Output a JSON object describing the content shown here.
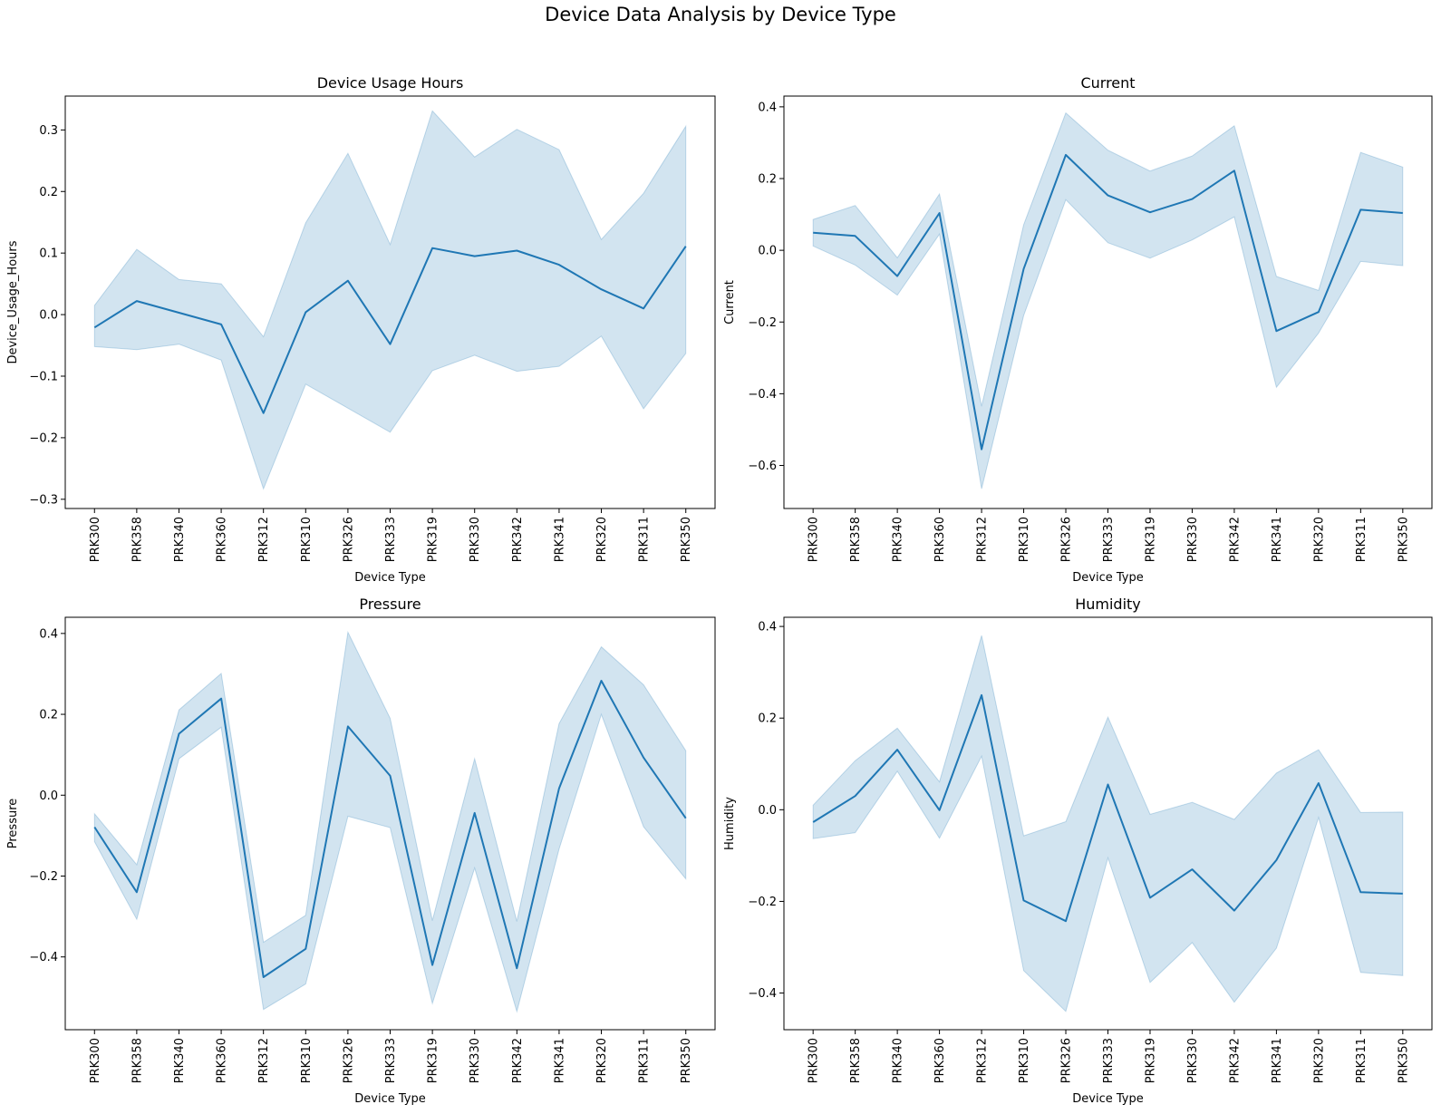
{
  "figure": {
    "suptitle": "Device Data Analysis by Device Type"
  },
  "chart_data": [
    {
      "type": "line",
      "title": "Device Usage Hours",
      "xlabel": "Device Type",
      "ylabel": "Device_Usage_Hours",
      "categories": [
        "PRK300",
        "PRK358",
        "PRK340",
        "PRK360",
        "PRK312",
        "PRK310",
        "PRK326",
        "PRK333",
        "PRK319",
        "PRK330",
        "PRK342",
        "PRK341",
        "PRK320",
        "PRK311",
        "PRK350"
      ],
      "ylim": [
        -0.315,
        0.355
      ],
      "yticks": [
        -0.3,
        -0.2,
        -0.1,
        0.0,
        0.1,
        0.2,
        0.3
      ],
      "ytick_labels": [
        "−0.3",
        "−0.2",
        "−0.1",
        "0.0",
        "0.1",
        "0.2",
        "0.3"
      ],
      "series": [
        {
          "values": [
            -0.021,
            0.022,
            0.003,
            -0.016,
            -0.16,
            0.004,
            0.055,
            -0.048,
            0.108,
            0.095,
            0.104,
            0.081,
            0.041,
            0.01,
            0.111
          ],
          "ci_lower": [
            -0.052,
            -0.057,
            -0.048,
            -0.074,
            -0.283,
            -0.113,
            -0.152,
            -0.191,
            -0.091,
            -0.066,
            -0.092,
            -0.084,
            -0.035,
            -0.153,
            -0.063
          ],
          "ci_upper": [
            0.015,
            0.106,
            0.057,
            0.05,
            -0.036,
            0.149,
            0.262,
            0.114,
            0.331,
            0.256,
            0.301,
            0.268,
            0.122,
            0.197,
            0.306
          ]
        }
      ],
      "color": "#1f77b4",
      "band_color": "#1f77b4"
    },
    {
      "type": "line",
      "title": "Current",
      "xlabel": "Device Type",
      "ylabel": "Current",
      "categories": [
        "PRK300",
        "PRK358",
        "PRK340",
        "PRK360",
        "PRK312",
        "PRK310",
        "PRK326",
        "PRK333",
        "PRK319",
        "PRK330",
        "PRK342",
        "PRK341",
        "PRK320",
        "PRK311",
        "PRK350"
      ],
      "ylim": [
        -0.72,
        0.43
      ],
      "yticks": [
        -0.6,
        -0.4,
        -0.2,
        0.0,
        0.2,
        0.4
      ],
      "ytick_labels": [
        "−0.6",
        "−0.4",
        "−0.2",
        "0.0",
        "0.2",
        "0.4"
      ],
      "series": [
        {
          "values": [
            0.049,
            0.04,
            -0.072,
            0.104,
            -0.555,
            -0.052,
            0.266,
            0.153,
            0.106,
            0.143,
            0.222,
            -0.225,
            -0.172,
            0.113,
            0.104
          ],
          "ci_lower": [
            0.012,
            -0.041,
            -0.125,
            0.045,
            -0.665,
            -0.182,
            0.141,
            0.021,
            -0.022,
            0.029,
            0.093,
            -0.382,
            -0.231,
            -0.031,
            -0.043
          ],
          "ci_upper": [
            0.086,
            0.125,
            -0.021,
            0.157,
            -0.435,
            0.071,
            0.383,
            0.279,
            0.221,
            0.263,
            0.347,
            -0.073,
            -0.112,
            0.273,
            0.232
          ]
        }
      ],
      "color": "#1f77b4",
      "band_color": "#1f77b4"
    },
    {
      "type": "line",
      "title": "Pressure",
      "xlabel": "Device Type",
      "ylabel": "Pressure",
      "categories": [
        "PRK300",
        "PRK358",
        "PRK340",
        "PRK360",
        "PRK312",
        "PRK310",
        "PRK326",
        "PRK333",
        "PRK319",
        "PRK330",
        "PRK342",
        "PRK341",
        "PRK320",
        "PRK311",
        "PRK350"
      ],
      "ylim": [
        -0.58,
        0.44
      ],
      "yticks": [
        -0.4,
        -0.2,
        0.0,
        0.2,
        0.4
      ],
      "ytick_labels": [
        "−0.4",
        "−0.2",
        "0.0",
        "0.2",
        "0.4"
      ],
      "series": [
        {
          "values": [
            -0.079,
            -0.24,
            0.152,
            0.239,
            -0.45,
            -0.38,
            0.17,
            0.048,
            -0.42,
            -0.044,
            -0.428,
            0.017,
            0.283,
            0.093,
            -0.057
          ],
          "ci_lower": [
            -0.115,
            -0.307,
            0.09,
            0.168,
            -0.53,
            -0.467,
            -0.052,
            -0.08,
            -0.515,
            -0.18,
            -0.535,
            -0.133,
            0.2,
            -0.078,
            -0.207
          ],
          "ci_upper": [
            -0.046,
            -0.172,
            0.211,
            0.301,
            -0.364,
            -0.297,
            0.403,
            0.19,
            -0.31,
            0.09,
            -0.312,
            0.177,
            0.367,
            0.273,
            0.11
          ]
        }
      ],
      "color": "#1f77b4",
      "band_color": "#1f77b4"
    },
    {
      "type": "line",
      "title": "Humidity",
      "xlabel": "Device Type",
      "ylabel": "Humidity",
      "categories": [
        "PRK300",
        "PRK358",
        "PRK340",
        "PRK360",
        "PRK312",
        "PRK310",
        "PRK326",
        "PRK333",
        "PRK319",
        "PRK330",
        "PRK342",
        "PRK341",
        "PRK320",
        "PRK311",
        "PRK350"
      ],
      "ylim": [
        -0.48,
        0.42
      ],
      "yticks": [
        -0.4,
        -0.2,
        0.0,
        0.2,
        0.4
      ],
      "ytick_labels": [
        "−0.4",
        "−0.2",
        "0.0",
        "0.2",
        "0.4"
      ],
      "series": [
        {
          "values": [
            -0.027,
            0.03,
            0.131,
            -0.001,
            0.25,
            -0.198,
            -0.243,
            0.055,
            -0.192,
            -0.13,
            -0.22,
            -0.11,
            0.058,
            -0.18,
            -0.183
          ],
          "ci_lower": [
            -0.063,
            -0.05,
            0.084,
            -0.062,
            0.117,
            -0.351,
            -0.44,
            -0.105,
            -0.377,
            -0.29,
            -0.42,
            -0.302,
            -0.017,
            -0.355,
            -0.362
          ],
          "ci_upper": [
            0.01,
            0.107,
            0.178,
            0.061,
            0.38,
            -0.057,
            -0.026,
            0.202,
            -0.01,
            0.016,
            -0.021,
            0.08,
            0.131,
            -0.006,
            -0.005
          ]
        }
      ],
      "color": "#1f77b4",
      "band_color": "#1f77b4"
    }
  ]
}
